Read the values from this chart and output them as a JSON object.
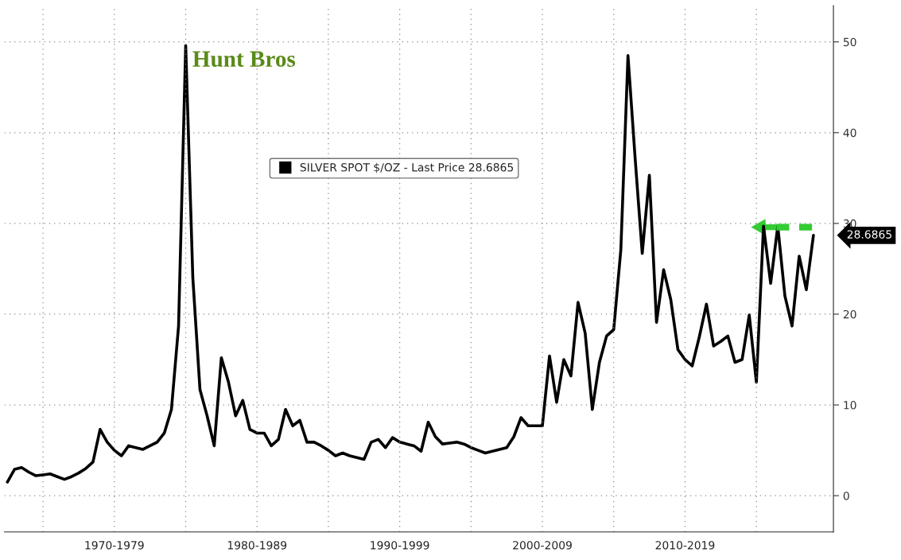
{
  "chart_data": {
    "type": "line",
    "categories": [
      null,
      null,
      null,
      null,
      null,
      null,
      null,
      null,
      null,
      null,
      null,
      null,
      null,
      null,
      null,
      "1970-1979",
      null,
      null,
      null,
      null,
      null,
      null,
      null,
      null,
      null,
      null,
      null,
      null,
      null,
      null,
      null,
      null,
      null,
      null,
      null,
      "1980-1989",
      null,
      null,
      null,
      null,
      null,
      null,
      null,
      null,
      null,
      null,
      null,
      null,
      null,
      null,
      null,
      null,
      null,
      null,
      null,
      "1990-1999",
      null,
      null,
      null,
      null,
      null,
      null,
      null,
      null,
      null,
      null,
      null,
      null,
      null,
      null,
      null,
      null,
      null,
      null,
      null,
      "2000-2009",
      null,
      null,
      null,
      null,
      null,
      null,
      null,
      null,
      null,
      null,
      null,
      null,
      null,
      null,
      null,
      null,
      null,
      null,
      null,
      "2010-2019",
      null,
      null,
      null,
      null,
      null,
      null,
      null,
      null,
      null,
      null,
      null,
      null,
      null,
      null,
      null,
      null,
      null,
      null
    ],
    "series": [
      {
        "name": "SILVER SPOT $/OZ - Last Price 28.6865",
        "color": "#000000",
        "values": [
          1.5,
          2.9,
          3.1,
          2.6,
          2.2,
          2.3,
          2.4,
          2.1,
          1.8,
          2.1,
          2.5,
          3.0,
          3.7,
          7.3,
          5.9,
          5.0,
          4.4,
          5.5,
          5.3,
          5.1,
          5.5,
          5.9,
          6.9,
          9.5,
          18.7,
          49.6,
          24.0,
          11.7,
          8.8,
          5.5,
          15.2,
          12.5,
          8.8,
          10.5,
          7.3,
          6.9,
          6.9,
          5.5,
          6.2,
          9.5,
          7.7,
          8.3,
          5.9,
          5.9,
          5.5,
          5.0,
          4.4,
          4.7,
          4.4,
          4.2,
          4.0,
          5.9,
          6.2,
          5.3,
          6.4,
          5.9,
          5.7,
          5.5,
          4.9,
          8.1,
          6.5,
          5.7,
          5.8,
          5.9,
          5.7,
          5.3,
          5.0,
          4.7,
          4.9,
          5.1,
          5.3,
          6.5,
          8.6,
          7.7,
          7.7,
          7.7,
          15.4,
          10.3,
          15.0,
          13.2,
          21.3,
          17.9,
          9.5,
          14.7,
          17.6,
          18.3,
          27.1,
          48.5,
          37.2,
          26.7,
          35.3,
          19.1,
          24.9,
          21.6,
          16.1,
          15.0,
          14.3,
          17.5,
          21.1,
          16.5,
          17.0,
          17.6,
          14.7,
          15.0,
          19.9,
          12.5,
          29.7,
          23.4,
          29.7,
          22.0,
          18.7,
          26.4,
          22.7,
          28.6865
        ]
      }
    ],
    "ylim": [
      -4,
      54
    ],
    "yticks": [
      0,
      10,
      20,
      30,
      40,
      50
    ],
    "grid": true,
    "legend": "top",
    "line_style": "solid",
    "marker": "none",
    "annotations": [
      "Hunt Bros",
      "28.6865"
    ]
  }
}
